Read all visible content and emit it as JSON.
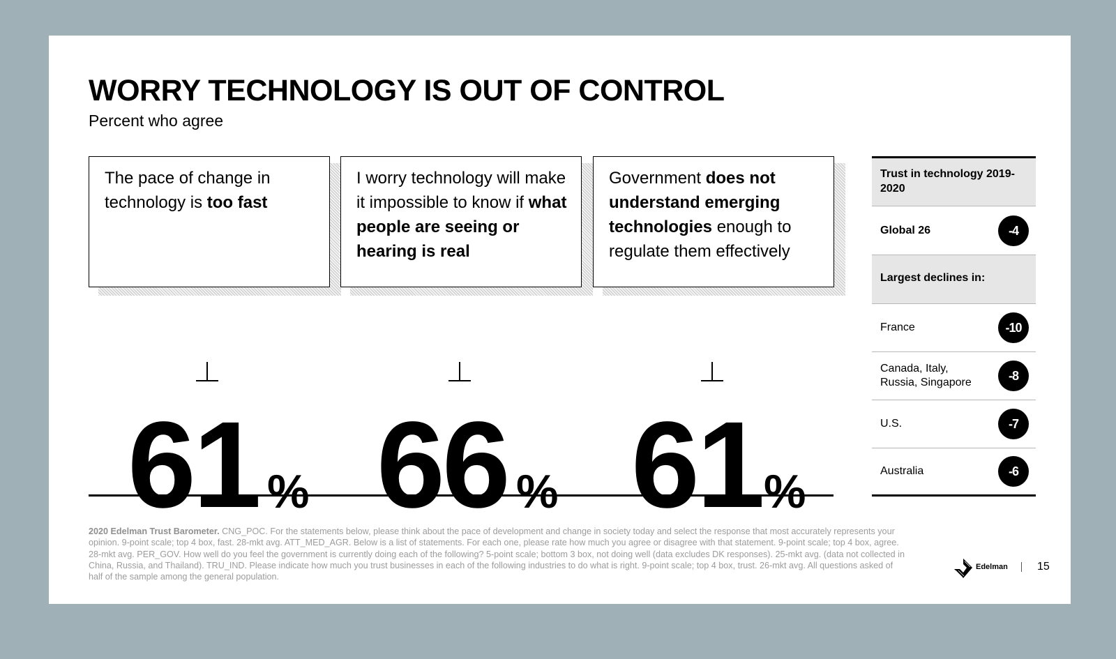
{
  "title": "WORRY TECHNOLOGY IS OUT OF CONTROL",
  "subtitle": "Percent who agree",
  "cards": [
    {
      "text_a": "The pace of change in technology is ",
      "bold_a": "too fast",
      "stat": "61",
      "pct": "%"
    },
    {
      "text_a": "I worry technology will make it impossible to know if ",
      "bold_a": "what people are seeing or hearing is real",
      "stat": "66",
      "pct": "%"
    },
    {
      "text_a": "Government ",
      "bold_a": "does not understand emerging technologies",
      "text_b": " enough to regulate them effectively",
      "stat": "61",
      "pct": "%"
    }
  ],
  "sidebar": {
    "header": "Trust in technology 2019-2020",
    "global": {
      "label": "Global 26",
      "value": "-4"
    },
    "declines_header": "Largest declines in:",
    "declines": [
      {
        "label": "France",
        "value": "-10"
      },
      {
        "label": "Canada, Italy, Russia, Singapore",
        "value": "-8"
      },
      {
        "label": "U.S.",
        "value": "-7"
      },
      {
        "label": "Australia",
        "value": "-6"
      }
    ]
  },
  "footnote": {
    "bold": "2020 Edelman Trust Barometer.",
    "text": " CNG_POC. For the statements below, please think about the pace of development and change in society today and select the response that most accurately represents your opinion. 9-point scale; top 4 box, fast. 28-mkt avg. ATT_MED_AGR. Below is a list of statements. For each one, please rate how much you agree or disagree with that statement. 9-point scale; top 4 box, agree. 28-mkt avg. PER_GOV. How well do you feel the government is currently doing each of the following? 5-point scale; bottom 3 box, not doing well (data excludes DK responses). 25-mkt avg. (data not collected in China, Russia, and Thailand). TRU_IND. Please indicate how much you trust businesses in each of the following industries to do what is right. 9-point scale; top 4 box, trust. 26-mkt avg. All questions asked of half of the sample among the general population."
  },
  "brand": "Edelman",
  "page_number": "15"
}
